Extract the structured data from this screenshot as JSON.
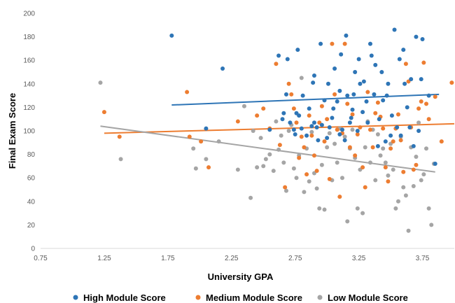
{
  "chart_data": {
    "type": "scatter",
    "title": "",
    "xlabel": "University GPA",
    "ylabel": "Final Exam Score",
    "xlim": [
      0.75,
      4.0
    ],
    "ylim": [
      0,
      200
    ],
    "x_ticks": [
      "0.75",
      "1.25",
      "1.75",
      "2.25",
      "2.75",
      "3.25",
      "3.75"
    ],
    "y_ticks": [
      "0",
      "20",
      "40",
      "60",
      "80",
      "100",
      "120",
      "140",
      "160",
      "180",
      "200"
    ],
    "grid": false,
    "legend_position": "bottom",
    "series": [
      {
        "name": "High Module Score",
        "color": "#2E75B6",
        "trendline": {
          "x": [
            1.78,
            3.88
          ],
          "y": [
            122,
            131
          ]
        },
        "points": [
          [
            1.78,
            181
          ],
          [
            2.18,
            153
          ],
          [
            2.05,
            102
          ],
          [
            2.55,
            101
          ],
          [
            2.62,
            164
          ],
          [
            2.65,
            110
          ],
          [
            2.66,
            115
          ],
          [
            2.68,
            131
          ],
          [
            2.69,
            161
          ],
          [
            2.71,
            107
          ],
          [
            2.74,
            101
          ],
          [
            2.75,
            97
          ],
          [
            2.76,
            115
          ],
          [
            2.77,
            169
          ],
          [
            2.78,
            113
          ],
          [
            2.8,
            102
          ],
          [
            2.81,
            130
          ],
          [
            2.84,
            96
          ],
          [
            2.86,
            119
          ],
          [
            2.88,
            104
          ],
          [
            2.89,
            141
          ],
          [
            2.9,
            147
          ],
          [
            2.9,
            107
          ],
          [
            2.92,
            103
          ],
          [
            2.93,
            92
          ],
          [
            2.95,
            174
          ],
          [
            2.96,
            105
          ],
          [
            2.98,
            126
          ],
          [
            3.0,
            94
          ],
          [
            3.01,
            140
          ],
          [
            3.02,
            103
          ],
          [
            3.04,
            111
          ],
          [
            3.05,
            119
          ],
          [
            3.06,
            153
          ],
          [
            3.08,
            125
          ],
          [
            3.1,
            97
          ],
          [
            3.1,
            134
          ],
          [
            3.11,
            165
          ],
          [
            3.12,
            101
          ],
          [
            3.14,
            92
          ],
          [
            3.15,
            181
          ],
          [
            3.16,
            130
          ],
          [
            3.18,
            107
          ],
          [
            3.19,
            111
          ],
          [
            3.2,
            118
          ],
          [
            3.21,
            131
          ],
          [
            3.22,
            150
          ],
          [
            3.24,
            100
          ],
          [
            3.25,
            161
          ],
          [
            3.26,
            140
          ],
          [
            3.28,
            116
          ],
          [
            3.29,
            142
          ],
          [
            3.31,
            125
          ],
          [
            3.32,
            107
          ],
          [
            3.34,
            174
          ],
          [
            3.35,
            164
          ],
          [
            3.37,
            131
          ],
          [
            3.38,
            156
          ],
          [
            3.4,
            87
          ],
          [
            3.41,
            110
          ],
          [
            3.43,
            150
          ],
          [
            3.44,
            126
          ],
          [
            3.46,
            91
          ],
          [
            3.47,
            130
          ],
          [
            3.48,
            140
          ],
          [
            3.5,
            96
          ],
          [
            3.51,
            113
          ],
          [
            3.53,
            186
          ],
          [
            3.55,
            103
          ],
          [
            3.57,
            161
          ],
          [
            3.58,
            96
          ],
          [
            3.6,
            169
          ],
          [
            3.61,
            140
          ],
          [
            3.63,
            120
          ],
          [
            3.65,
            103
          ],
          [
            3.66,
            144
          ],
          [
            3.68,
            87
          ],
          [
            3.7,
            180
          ],
          [
            3.72,
            100
          ],
          [
            3.74,
            144
          ],
          [
            3.75,
            178
          ],
          [
            3.8,
            130
          ],
          [
            3.85,
            72
          ]
        ]
      },
      {
        "name": "Medium Module Score",
        "color": "#ED7D31",
        "trendline": {
          "x": [
            1.25,
            4.0
          ],
          "y": [
            98,
            106
          ]
        },
        "points": [
          [
            1.25,
            116
          ],
          [
            1.37,
            95
          ],
          [
            1.9,
            133
          ],
          [
            1.92,
            95
          ],
          [
            2.01,
            91
          ],
          [
            2.07,
            69
          ],
          [
            2.3,
            108
          ],
          [
            2.45,
            113
          ],
          [
            2.5,
            119
          ],
          [
            2.55,
            102
          ],
          [
            2.6,
            157
          ],
          [
            2.63,
            88
          ],
          [
            2.67,
            52
          ],
          [
            2.7,
            140
          ],
          [
            2.72,
            131
          ],
          [
            2.74,
            119
          ],
          [
            2.76,
            107
          ],
          [
            2.78,
            77
          ],
          [
            2.8,
            95
          ],
          [
            2.82,
            86
          ],
          [
            2.84,
            63
          ],
          [
            2.86,
            113
          ],
          [
            2.88,
            96
          ],
          [
            2.9,
            79
          ],
          [
            2.92,
            66
          ],
          [
            2.94,
            107
          ],
          [
            2.96,
            121
          ],
          [
            2.98,
            91
          ],
          [
            3.0,
            110
          ],
          [
            3.02,
            59
          ],
          [
            3.04,
            174
          ],
          [
            3.06,
            131
          ],
          [
            3.08,
            101
          ],
          [
            3.1,
            44
          ],
          [
            3.12,
            98
          ],
          [
            3.14,
            174
          ],
          [
            3.16,
            123
          ],
          [
            3.18,
            86
          ],
          [
            3.2,
            114
          ],
          [
            3.22,
            79
          ],
          [
            3.24,
            97
          ],
          [
            3.26,
            103
          ],
          [
            3.28,
            69
          ],
          [
            3.3,
            52
          ],
          [
            3.32,
            133
          ],
          [
            3.34,
            101
          ],
          [
            3.36,
            86
          ],
          [
            3.38,
            115
          ],
          [
            3.4,
            124
          ],
          [
            3.42,
            112
          ],
          [
            3.44,
            102
          ],
          [
            3.46,
            69
          ],
          [
            3.48,
            57
          ],
          [
            3.5,
            85
          ],
          [
            3.52,
            91
          ],
          [
            3.54,
            102
          ],
          [
            3.56,
            114
          ],
          [
            3.58,
            92
          ],
          [
            3.6,
            65
          ],
          [
            3.62,
            157
          ],
          [
            3.64,
            142
          ],
          [
            3.66,
            103
          ],
          [
            3.68,
            67
          ],
          [
            3.7,
            71
          ],
          [
            3.72,
            119
          ],
          [
            3.74,
            125
          ],
          [
            3.76,
            158
          ],
          [
            3.78,
            123
          ],
          [
            3.8,
            110
          ],
          [
            3.85,
            129
          ],
          [
            3.9,
            91
          ],
          [
            3.98,
            141
          ]
        ]
      },
      {
        "name": "Low Module Score",
        "color": "#A5A5A5",
        "trendline": {
          "x": [
            1.22,
            3.85
          ],
          "y": [
            104,
            65
          ]
        },
        "points": [
          [
            1.22,
            141
          ],
          [
            1.38,
            76
          ],
          [
            1.95,
            85
          ],
          [
            1.97,
            68
          ],
          [
            2.05,
            76
          ],
          [
            2.15,
            91
          ],
          [
            2.3,
            67
          ],
          [
            2.35,
            121
          ],
          [
            2.4,
            43
          ],
          [
            2.42,
            100
          ],
          [
            2.45,
            69
          ],
          [
            2.48,
            94
          ],
          [
            2.5,
            70
          ],
          [
            2.52,
            76
          ],
          [
            2.55,
            80
          ],
          [
            2.58,
            66
          ],
          [
            2.6,
            108
          ],
          [
            2.62,
            84
          ],
          [
            2.64,
            96
          ],
          [
            2.66,
            73
          ],
          [
            2.68,
            49
          ],
          [
            2.7,
            100
          ],
          [
            2.72,
            105
          ],
          [
            2.74,
            68
          ],
          [
            2.76,
            60
          ],
          [
            2.78,
            79
          ],
          [
            2.8,
            145
          ],
          [
            2.82,
            48
          ],
          [
            2.84,
            85
          ],
          [
            2.86,
            57
          ],
          [
            2.88,
            99
          ],
          [
            2.9,
            64
          ],
          [
            2.92,
            51
          ],
          [
            2.94,
            34
          ],
          [
            2.96,
            71
          ],
          [
            2.98,
            33
          ],
          [
            3.0,
            86
          ],
          [
            3.02,
            98
          ],
          [
            3.04,
            58
          ],
          [
            3.06,
            89
          ],
          [
            3.08,
            73
          ],
          [
            3.1,
            102
          ],
          [
            3.12,
            60
          ],
          [
            3.14,
            95
          ],
          [
            3.16,
            23
          ],
          [
            3.18,
            85
          ],
          [
            3.2,
            101
          ],
          [
            3.22,
            77
          ],
          [
            3.24,
            34
          ],
          [
            3.26,
            67
          ],
          [
            3.28,
            30
          ],
          [
            3.3,
            86
          ],
          [
            3.32,
            108
          ],
          [
            3.34,
            73
          ],
          [
            3.36,
            101
          ],
          [
            3.38,
            58
          ],
          [
            3.4,
            97
          ],
          [
            3.42,
            79
          ],
          [
            3.44,
            85
          ],
          [
            3.46,
            73
          ],
          [
            3.48,
            62
          ],
          [
            3.5,
            89
          ],
          [
            3.52,
            67
          ],
          [
            3.54,
            34
          ],
          [
            3.56,
            40
          ],
          [
            3.58,
            95
          ],
          [
            3.6,
            52
          ],
          [
            3.62,
            45
          ],
          [
            3.64,
            15
          ],
          [
            3.66,
            86
          ],
          [
            3.68,
            53
          ],
          [
            3.7,
            78
          ],
          [
            3.72,
            107
          ],
          [
            3.74,
            58
          ],
          [
            3.76,
            63
          ],
          [
            3.78,
            85
          ],
          [
            3.8,
            34
          ],
          [
            3.82,
            20
          ],
          [
            3.84,
            72
          ]
        ]
      }
    ]
  }
}
